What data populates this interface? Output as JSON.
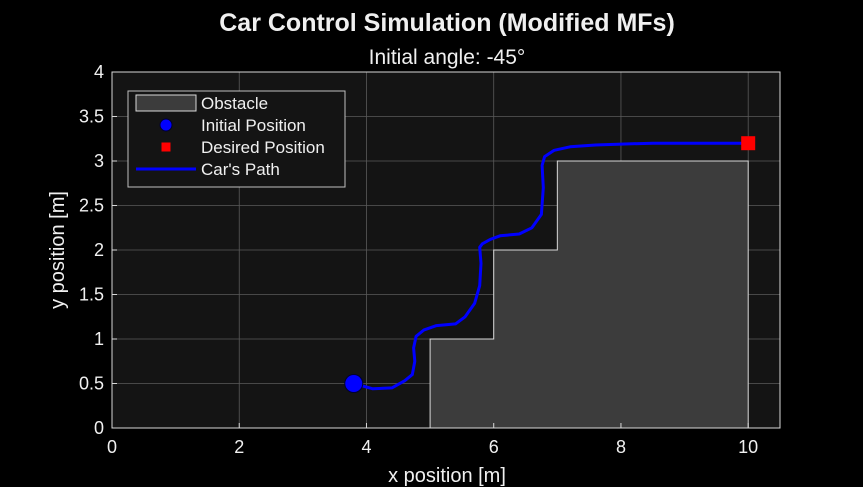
{
  "chart_data": {
    "type": "line",
    "title": "Car Control Simulation (Modified MFs)",
    "subtitle": "Initial angle: -45°",
    "xlabel": "x position [m]",
    "ylabel": "y position [m]",
    "xlim": [
      0,
      10.5
    ],
    "ylim": [
      0,
      4
    ],
    "xticks": [
      0,
      2,
      4,
      6,
      8,
      10
    ],
    "yticks": [
      0,
      0.5,
      1,
      1.5,
      2,
      2.5,
      3,
      3.5,
      4
    ],
    "grid": true,
    "legend_position": "top-left",
    "legend": [
      {
        "label": "Obstacle",
        "kind": "patch"
      },
      {
        "label": "Initial Position",
        "kind": "circle"
      },
      {
        "label": "Desired Position",
        "kind": "square"
      },
      {
        "label": "Car's Path",
        "kind": "line"
      }
    ],
    "obstacle": {
      "outline": [
        [
          5,
          0
        ],
        [
          5,
          1
        ],
        [
          6,
          1
        ],
        [
          6,
          2
        ],
        [
          7,
          2
        ],
        [
          7,
          3
        ],
        [
          10,
          3
        ],
        [
          10,
          0
        ]
      ]
    },
    "initial_position": {
      "x": 3.8,
      "y": 0.5
    },
    "desired_position": {
      "x": 10,
      "y": 3.2
    },
    "path": {
      "x": [
        3.8,
        4.1,
        4.4,
        4.6,
        4.72,
        4.76,
        4.74,
        4.78,
        4.9,
        5.1,
        5.4,
        5.55,
        5.7,
        5.78,
        5.8,
        5.78,
        5.82,
        5.95,
        6.1,
        6.4,
        6.6,
        6.75,
        6.78,
        6.76,
        6.8,
        6.95,
        7.2,
        7.6,
        8.0,
        8.5,
        9.0,
        9.5,
        10.0
      ],
      "y": [
        0.5,
        0.44,
        0.45,
        0.53,
        0.6,
        0.75,
        0.9,
        1.03,
        1.1,
        1.15,
        1.17,
        1.25,
        1.4,
        1.6,
        1.85,
        2.03,
        2.07,
        2.12,
        2.16,
        2.18,
        2.25,
        2.4,
        2.7,
        2.95,
        3.05,
        3.12,
        3.16,
        3.18,
        3.19,
        3.2,
        3.2,
        3.2,
        3.2
      ]
    },
    "colors": {
      "background": "#000000",
      "axes_background": "#141414",
      "grid": "#5a5a5a",
      "axis": "#d9d9d9",
      "obstacle_fill": "#3c3c3c",
      "obstacle_edge": "#d9d9d9",
      "path": "#0000ff",
      "initial": "#0000ff",
      "desired": "#ff0000",
      "legend_bg": "#141414",
      "legend_edge": "#bfbfbf",
      "text": "#f0f0f0"
    }
  }
}
